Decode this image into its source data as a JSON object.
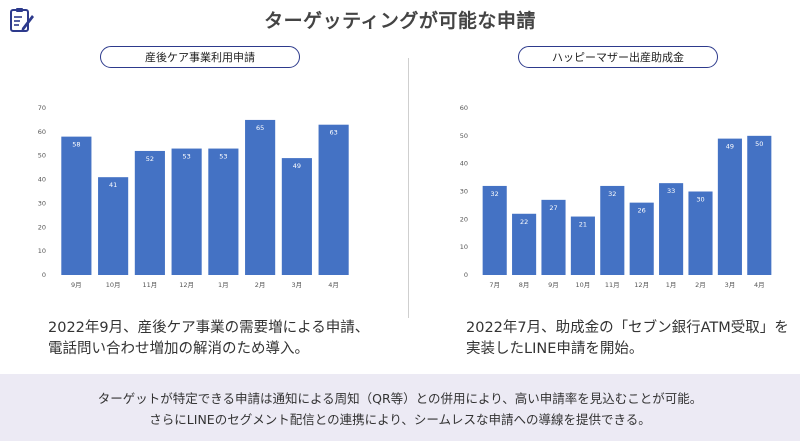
{
  "header": {
    "title": "ターゲッティングが可能な申請",
    "logo_icon": "clipboard-pen-icon"
  },
  "colors": {
    "bar": "#4472c4",
    "pill_border": "#2d3a8c",
    "bottom_bg": "#eceaf4"
  },
  "left": {
    "pill_label": "産後ケア事業利用申請",
    "caption_line1": "2022年9月、産後ケア事業の需要増による申請、",
    "caption_line2": "電話問い合わせ増加の解消のため導入。"
  },
  "right": {
    "pill_label": "ハッピーマザー出産助成金",
    "caption_line1": "2022年7月、助成金の「セブン銀行ATM受取」を",
    "caption_line2": "実装したLINE申請を開始。"
  },
  "bottom": {
    "line1": "ターゲットが特定できる申請は通知による周知（QR等）との併用により、高い申請率を見込むことが可能。",
    "line2": "さらにLINEのセグメント配信との連携により、シームレスな申請への導線を提供できる。"
  },
  "chart_data": [
    {
      "type": "bar",
      "categories": [
        "9月",
        "10月",
        "11月",
        "12月",
        "1月",
        "2月",
        "3月",
        "4月"
      ],
      "values": [
        58,
        41,
        52,
        53,
        53,
        65,
        49,
        63
      ],
      "ylim": [
        0,
        70
      ],
      "yticks": [
        0,
        10,
        20,
        30,
        40,
        50,
        60,
        70
      ],
      "grid": false
    },
    {
      "type": "bar",
      "categories": [
        "7月",
        "8月",
        "9月",
        "10月",
        "11月",
        "12月",
        "1月",
        "2月",
        "3月",
        "4月"
      ],
      "values": [
        32,
        22,
        27,
        21,
        32,
        26,
        33,
        30,
        49,
        50
      ],
      "ylim": [
        0,
        60
      ],
      "yticks": [
        0,
        10,
        20,
        30,
        40,
        50,
        60
      ],
      "grid": false
    }
  ]
}
